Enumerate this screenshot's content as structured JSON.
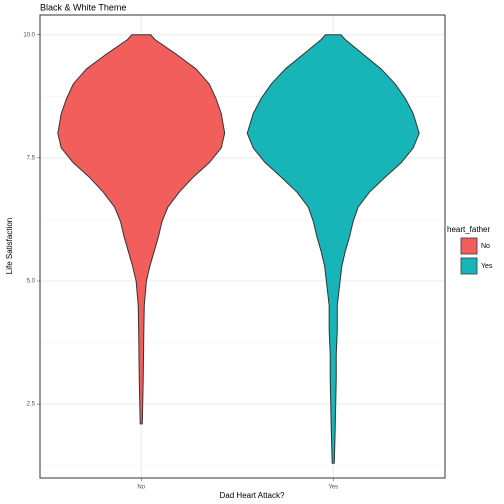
{
  "chart_data": {
    "type": "violin",
    "title": "Black & White Theme",
    "x_label": "Dad Heart Attack?",
    "y_label": "Life Satisfaction",
    "categories": [
      "No",
      "Yes"
    ],
    "legend_title": "heart_father",
    "ylim": [
      1.0,
      10.4
    ],
    "yticks": [
      2.5,
      5.0,
      7.5,
      10.0
    ],
    "yticks_labels": [
      "2.5",
      "5.0",
      "7.5",
      "10.0"
    ],
    "grid": true,
    "legend": "right",
    "series": [
      {
        "name": "No",
        "color": "#f25e5b",
        "y": [
          10.0,
          9.9,
          9.6,
          9.3,
          9.0,
          8.7,
          8.4,
          8.0,
          7.7,
          7.4,
          7.1,
          6.8,
          6.5,
          6.2,
          5.9,
          5.6,
          5.3,
          5.0,
          4.5,
          4.0,
          3.0,
          2.5,
          2.1
        ],
        "density": [
          0.11,
          0.16,
          0.41,
          0.64,
          0.79,
          0.87,
          0.93,
          0.97,
          0.93,
          0.79,
          0.6,
          0.44,
          0.31,
          0.24,
          0.2,
          0.15,
          0.1,
          0.06,
          0.035,
          0.03,
          0.023,
          0.017,
          0.012
        ]
      },
      {
        "name": "Yes",
        "color": "#17b4b8",
        "y": [
          10.0,
          9.9,
          9.6,
          9.3,
          9.0,
          8.7,
          8.4,
          8.0,
          7.7,
          7.4,
          7.1,
          6.8,
          6.5,
          6.2,
          5.9,
          5.6,
          5.3,
          5.0,
          4.5,
          4.0,
          3.5,
          3.0,
          2.5,
          2.0,
          1.6,
          1.3
        ],
        "density": [
          0.09,
          0.14,
          0.35,
          0.56,
          0.72,
          0.84,
          0.93,
          1.0,
          0.93,
          0.79,
          0.6,
          0.42,
          0.29,
          0.23,
          0.19,
          0.14,
          0.1,
          0.08,
          0.047,
          0.047,
          0.035,
          0.035,
          0.029,
          0.023,
          0.017,
          0.012
        ]
      }
    ]
  }
}
